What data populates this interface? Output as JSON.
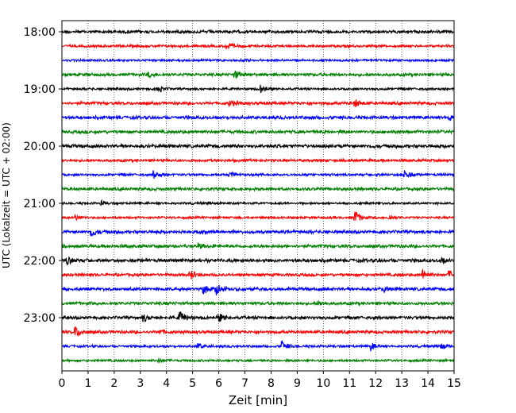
{
  "chart_data": {
    "type": "line",
    "title": "",
    "xlabel": "Zeit  [min]",
    "ylabel": "UTC (Lokalzeit = UTC + 02:00)",
    "xlim": [
      0,
      15
    ],
    "x_ticks": [
      "0",
      "1",
      "2",
      "3",
      "4",
      "5",
      "6",
      "7",
      "8",
      "9",
      "10",
      "11",
      "12",
      "13",
      "14",
      "15"
    ],
    "y_ticks": [
      "18:00",
      "19:00",
      "20:00",
      "21:00",
      "22:00",
      "23:00"
    ],
    "trace_interval_minutes": 15,
    "start_time": "18:00",
    "trace_count": 24,
    "grid": "vertical dotted",
    "colors": [
      "#000000",
      "#ff0000",
      "#0000ff",
      "#008000"
    ],
    "events": [
      {
        "trace": 1,
        "minute": 6.3,
        "amplitude": 0.7
      },
      {
        "trace": 3,
        "minute": 6.6,
        "amplitude": 0.7
      },
      {
        "trace": 3,
        "minute": 3.3,
        "amplitude": 0.4
      },
      {
        "trace": 4,
        "minute": 3.7,
        "amplitude": 0.6
      },
      {
        "trace": 4,
        "minute": 7.6,
        "amplitude": 0.7
      },
      {
        "trace": 5,
        "minute": 6.4,
        "amplitude": 0.6
      },
      {
        "trace": 5,
        "minute": 11.2,
        "amplitude": 0.7
      },
      {
        "trace": 6,
        "minute": 14.8,
        "amplitude": 0.5
      },
      {
        "trace": 10,
        "minute": 3.5,
        "amplitude": 0.7
      },
      {
        "trace": 10,
        "minute": 6.4,
        "amplitude": 0.5
      },
      {
        "trace": 10,
        "minute": 13.1,
        "amplitude": 0.9
      },
      {
        "trace": 12,
        "minute": 1.5,
        "amplitude": 0.4
      },
      {
        "trace": 13,
        "minute": 0.5,
        "amplitude": 0.5
      },
      {
        "trace": 13,
        "minute": 11.2,
        "amplitude": 1.3
      },
      {
        "trace": 13,
        "minute": 12.5,
        "amplitude": 0.5
      },
      {
        "trace": 14,
        "minute": 1.1,
        "amplitude": 0.9
      },
      {
        "trace": 15,
        "minute": 5.2,
        "amplitude": 0.4
      },
      {
        "trace": 16,
        "minute": 0.2,
        "amplitude": 0.7
      },
      {
        "trace": 16,
        "minute": 14.5,
        "amplitude": 0.5
      },
      {
        "trace": 17,
        "minute": 4.9,
        "amplitude": 0.9
      },
      {
        "trace": 17,
        "minute": 13.8,
        "amplitude": 0.9
      },
      {
        "trace": 17,
        "minute": 14.8,
        "amplitude": 0.8
      },
      {
        "trace": 18,
        "minute": 5.4,
        "amplitude": 0.8
      },
      {
        "trace": 18,
        "minute": 5.9,
        "amplitude": 1.1
      },
      {
        "trace": 18,
        "minute": 12.3,
        "amplitude": 0.5
      },
      {
        "trace": 19,
        "minute": 9.8,
        "amplitude": 0.4
      },
      {
        "trace": 20,
        "minute": 3.1,
        "amplitude": 0.7
      },
      {
        "trace": 20,
        "minute": 4.5,
        "amplitude": 1.2
      },
      {
        "trace": 20,
        "minute": 6.0,
        "amplitude": 0.7
      },
      {
        "trace": 21,
        "minute": 0.5,
        "amplitude": 1.1
      },
      {
        "trace": 21,
        "minute": 3.7,
        "amplitude": 0.4
      },
      {
        "trace": 22,
        "minute": 5.2,
        "amplitude": 0.5
      },
      {
        "trace": 22,
        "minute": 8.4,
        "amplitude": 1.0
      },
      {
        "trace": 22,
        "minute": 11.8,
        "amplitude": 0.7
      },
      {
        "trace": 22,
        "minute": 14.5,
        "amplitude": 0.5
      },
      {
        "trace": 23,
        "minute": 3.7,
        "amplitude": 0.4
      }
    ]
  }
}
